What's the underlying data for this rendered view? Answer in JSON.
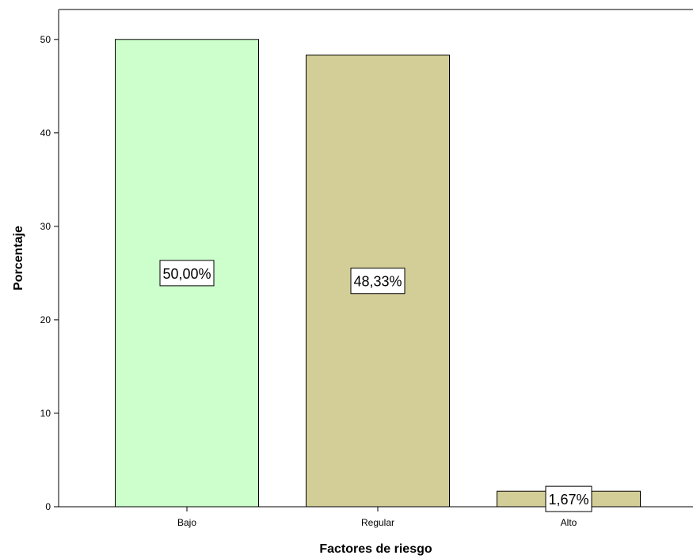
{
  "chart_data": {
    "type": "bar",
    "categories": [
      "Bajo",
      "Regular",
      "Alto"
    ],
    "values": [
      50.0,
      48.33,
      1.67
    ],
    "data_labels": [
      "50,00%",
      "48,33%",
      "1,67%"
    ],
    "bar_colors": [
      "#ccffcc",
      "#d3ce98",
      "#d3ce98"
    ],
    "xlabel": "Factores de riesgo",
    "ylabel": "Porcentaje",
    "ylim": [
      0,
      53.2
    ],
    "yticks": [
      0,
      10,
      20,
      30,
      40,
      50
    ],
    "ytick_labels": [
      "0",
      "10",
      "20",
      "30",
      "40",
      "50"
    ],
    "grid": false
  }
}
